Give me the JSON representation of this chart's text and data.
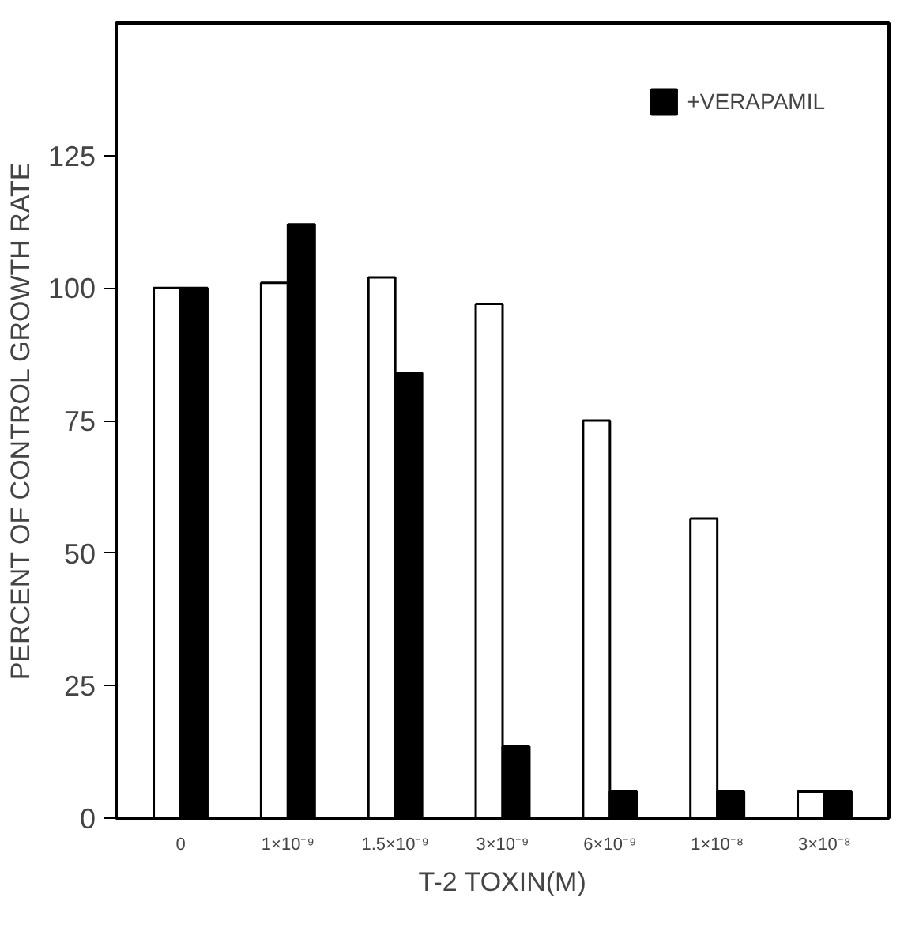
{
  "chart_data": {
    "type": "bar",
    "xlabel": "T-2 TOXIN(M)",
    "ylabel": "PERCENT OF CONTROL GROWTH RATE",
    "categories": [
      "0",
      "1×10⁻⁹",
      "1.5×10⁻⁹",
      "3×10⁻⁹",
      "6×10⁻⁹",
      "1×10⁻⁸",
      "3×10⁻⁸"
    ],
    "series": [
      {
        "color": "#ffffff",
        "values": [
          100,
          101,
          102,
          97,
          75,
          56.5,
          5
        ]
      },
      {
        "name": "+VERAPAMIL",
        "color": "#000000",
        "values": [
          100,
          112,
          84,
          13.5,
          5,
          5,
          5
        ]
      }
    ],
    "ylim": [
      0,
      150
    ],
    "yticks": [
      0,
      25,
      50,
      75,
      100,
      125
    ],
    "grid": false,
    "legend": "top right"
  }
}
